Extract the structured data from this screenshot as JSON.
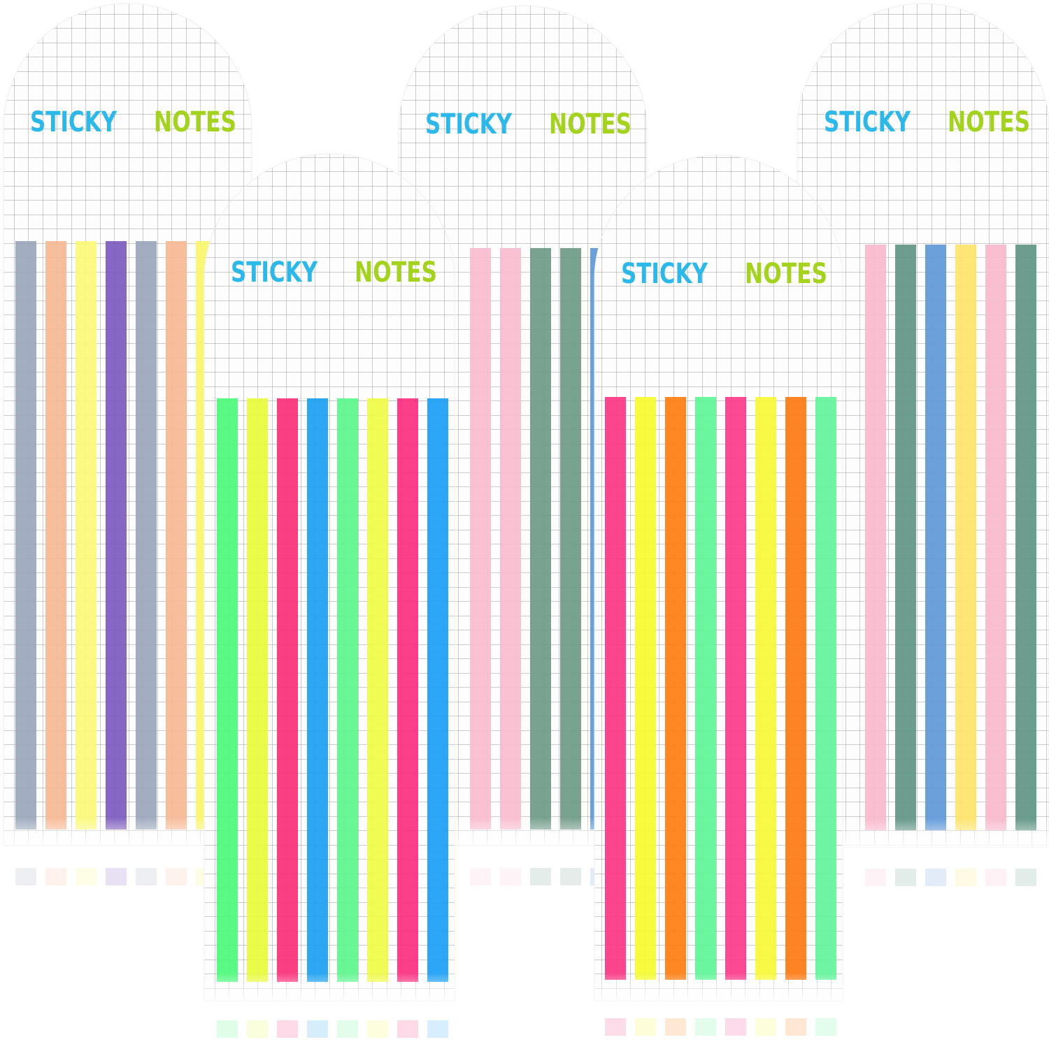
{
  "cards": [
    {
      "left": "STICKY",
      "right": "NOTES"
    },
    {
      "left": "STICKY",
      "right": "NOTES"
    },
    {
      "left": "STICKY",
      "right": "NOTES"
    },
    {
      "left": "STICKY",
      "right": "NOTES"
    },
    {
      "left": "STICKY",
      "right": "NOTES"
    }
  ]
}
